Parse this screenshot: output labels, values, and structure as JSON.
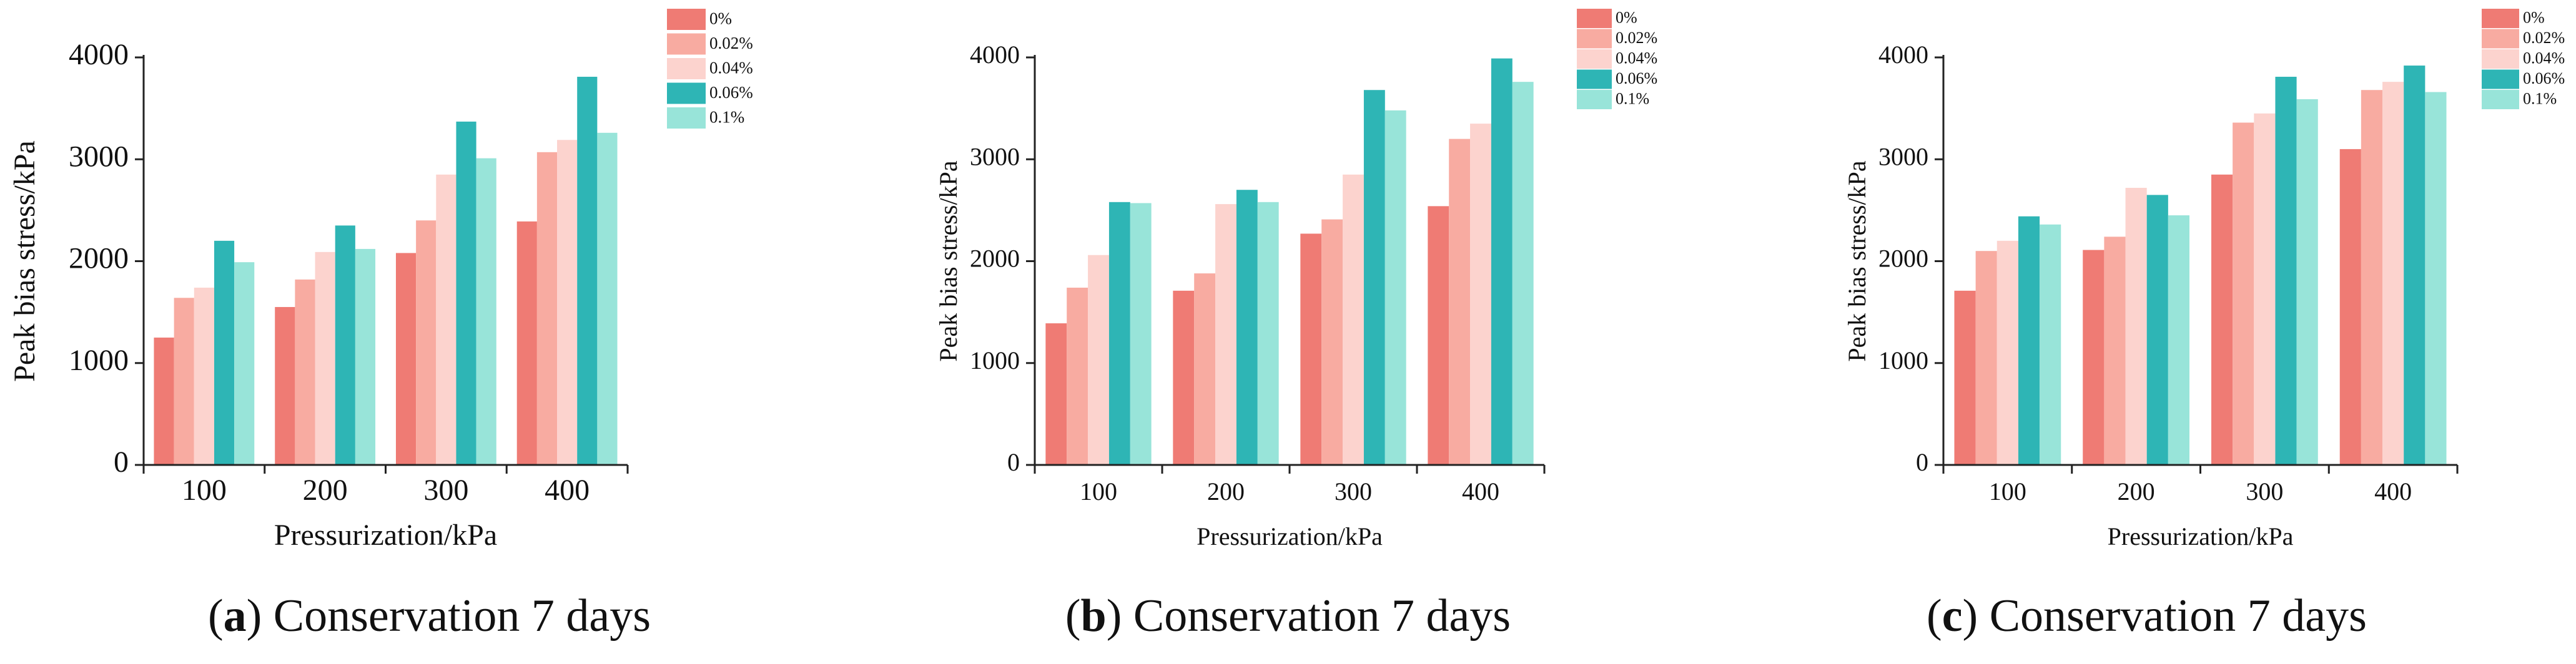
{
  "series_colors": [
    "#ef7b74",
    "#f8aba1",
    "#fcd3ce",
    "#2eb5b5",
    "#98e4d9"
  ],
  "chart_data": [
    {
      "type": "bar",
      "panel_id": "a",
      "caption_text": " Conservation 7 days",
      "xlabel": "Pressurization/kPa",
      "ylabel": "Peak bias stress/kPa",
      "categories": [
        "100",
        "200",
        "300",
        "400"
      ],
      "ylim": [
        0,
        4000
      ],
      "yticks": [
        "0",
        "1000",
        "2000",
        "3000",
        "4000"
      ],
      "series": [
        {
          "name": "0%",
          "values": [
            1250,
            1550,
            2080,
            2390
          ]
        },
        {
          "name": "0.02%",
          "values": [
            1640,
            1820,
            2400,
            3070
          ]
        },
        {
          "name": "0.04%",
          "values": [
            1740,
            2090,
            2850,
            3190
          ]
        },
        {
          "name": "0.06%",
          "values": [
            2200,
            2350,
            3370,
            3810
          ]
        },
        {
          "name": "0.1%",
          "values": [
            1990,
            2120,
            3010,
            3260
          ]
        }
      ]
    },
    {
      "type": "bar",
      "panel_id": "b",
      "caption_text": " Conservation 7 days",
      "xlabel": "Pressurization/kPa",
      "ylabel": "Peak bias stress/kPa",
      "categories": [
        "100",
        "200",
        "300",
        "400"
      ],
      "ylim": [
        0,
        4000
      ],
      "yticks": [
        "0",
        "1000",
        "2000",
        "3000",
        "4000"
      ],
      "series": [
        {
          "name": "0%",
          "values": [
            1390,
            1710,
            2270,
            2540
          ]
        },
        {
          "name": "0.02%",
          "values": [
            1740,
            1880,
            2410,
            3200
          ]
        },
        {
          "name": "0.04%",
          "values": [
            2060,
            2560,
            2850,
            3350
          ]
        },
        {
          "name": "0.06%",
          "values": [
            2580,
            2700,
            3680,
            3990
          ]
        },
        {
          "name": "0.1%",
          "values": [
            2570,
            2580,
            3480,
            3760
          ]
        }
      ]
    },
    {
      "type": "bar",
      "panel_id": "c",
      "caption_text": " Conservation 7 days",
      "xlabel": "Pressurization/kPa",
      "ylabel": "Peak bias stress/kPa",
      "categories": [
        "100",
        "200",
        "300",
        "400"
      ],
      "ylim": [
        0,
        4000
      ],
      "yticks": [
        "0",
        "1000",
        "2000",
        "3000",
        "4000"
      ],
      "series": [
        {
          "name": "0%",
          "values": [
            1710,
            2110,
            2850,
            3100
          ]
        },
        {
          "name": "0.02%",
          "values": [
            2100,
            2240,
            3360,
            3680
          ]
        },
        {
          "name": "0.04%",
          "values": [
            2200,
            2720,
            3450,
            3760
          ]
        },
        {
          "name": "0.06%",
          "values": [
            2440,
            2650,
            3810,
            3920
          ]
        },
        {
          "name": "0.1%",
          "values": [
            2360,
            2450,
            3590,
            3660
          ]
        }
      ]
    }
  ]
}
